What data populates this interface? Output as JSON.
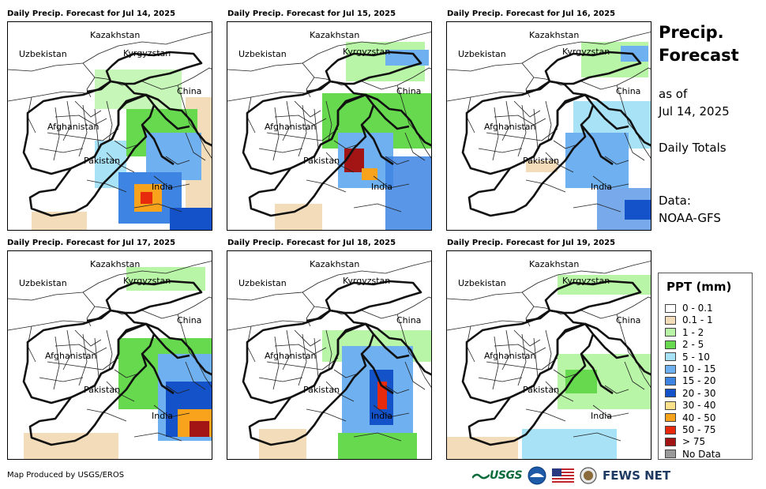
{
  "panels": [
    {
      "title": "Daily Precip. Forecast for Jul 14, 2025"
    },
    {
      "title": "Daily Precip. Forecast for Jul 15, 2025"
    },
    {
      "title": "Daily Precip. Forecast for Jul 16, 2025"
    },
    {
      "title": "Daily Precip. Forecast for Jul 17, 2025"
    },
    {
      "title": "Daily Precip. Forecast for Jul 18, 2025"
    },
    {
      "title": "Daily Precip. Forecast for Jul 19, 2025"
    }
  ],
  "map_labels": {
    "kazakhstan": "Kazakhstan",
    "uzbekistan": "Uzbekistan",
    "kyrgyzstan": "Kyrgyzstan",
    "china": "China",
    "afghanistan": "Afghanistan",
    "pakistan": "Pakistan",
    "india": "India"
  },
  "sidebar": {
    "title_line1": "Precip.",
    "title_line2": "Forecast",
    "asof_line1": "as of",
    "asof_line2": "Jul 14, 2025",
    "totals": "Daily Totals",
    "data_line1": "Data:",
    "data_line2": "NOAA-GFS"
  },
  "legend": {
    "title": "PPT (mm)",
    "items": [
      {
        "label": "0 - 0.1",
        "color": "#ffffff"
      },
      {
        "label": "0.1 - 1",
        "color": "#f2dcb9"
      },
      {
        "label": "1 - 2",
        "color": "#b9f5a6"
      },
      {
        "label": "2 - 5",
        "color": "#67d94e"
      },
      {
        "label": "5 - 10",
        "color": "#a8e2f7"
      },
      {
        "label": "10 - 15",
        "color": "#6fb0f0"
      },
      {
        "label": "15 - 20",
        "color": "#3d84e3"
      },
      {
        "label": "20 - 30",
        "color": "#1452c9"
      },
      {
        "label": "30 - 40",
        "color": "#fbe28a"
      },
      {
        "label": "40 - 50",
        "color": "#f9a21b"
      },
      {
        "label": "50 - 75",
        "color": "#e82a0c"
      },
      {
        "label": "> 75",
        "color": "#a31515"
      },
      {
        "label": "No Data",
        "color": "#9a9a9a"
      }
    ]
  },
  "footer": {
    "credit": "Map Produced by USGS/EROS",
    "usgs": "USGS",
    "fews": "FEWS NET"
  }
}
